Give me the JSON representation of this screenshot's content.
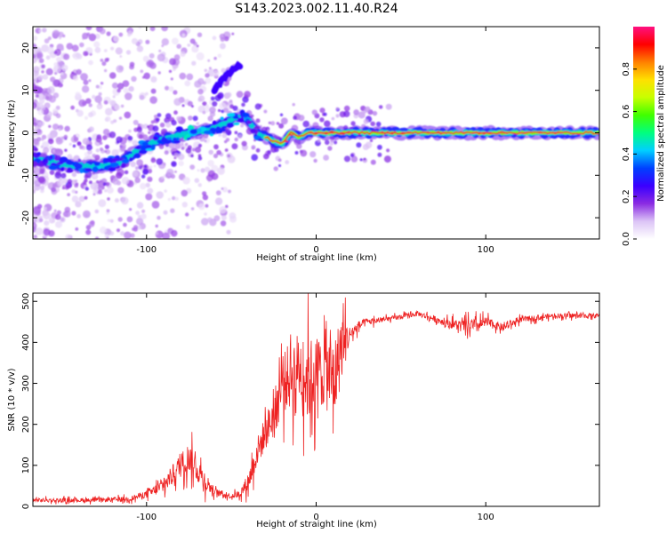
{
  "figure": {
    "title": "S143.2023.002.11.40.R24"
  },
  "chart_data": [
    {
      "type": "heatmap",
      "description_panel": "top",
      "xlabel": "Height of straight line (km)",
      "ylabel": "Frequency (Hz)",
      "xlim": [
        -167,
        167
      ],
      "ylim": [
        -25,
        25
      ],
      "xticks": [
        -100,
        0,
        100
      ],
      "xtick_labels": [
        "-100",
        "0",
        "100"
      ],
      "yticks": [
        -20,
        -10,
        0,
        10,
        20
      ],
      "ytick_labels": [
        "-20",
        "-10",
        "0",
        "10",
        "20"
      ],
      "colorbar": {
        "label": "Normalized spectral amplitude",
        "range": [
          0,
          1
        ],
        "ticks": [
          0.0,
          0.2,
          0.4,
          0.6,
          0.8
        ],
        "tick_labels": [
          "0.0",
          "0.2",
          "0.4",
          "0.6",
          "0.8"
        ],
        "colormap": [
          "#ffffff",
          "#dcc4f6",
          "#8a2be2",
          "#3a00ff",
          "#0040ff",
          "#00cfff",
          "#00ff7f",
          "#40ff00",
          "#c8ff00",
          "#ffe000",
          "#ff8000",
          "#ff0000",
          "#ff1080"
        ]
      },
      "ridge": {
        "x": [
          -167,
          -150,
          -130,
          -115,
          -105,
          -95,
          -85,
          -75,
          -65,
          -55,
          -45,
          -40,
          -35,
          -30,
          -25,
          -20,
          -15,
          -10,
          -5,
          0,
          10,
          20,
          40,
          60,
          80,
          100,
          120,
          140,
          167
        ],
        "y": [
          -6,
          -7.5,
          -8,
          -7,
          -4,
          -2,
          -1,
          0,
          0.5,
          2,
          4,
          3,
          0,
          -1,
          -2,
          -2.5,
          0,
          -1,
          0,
          0,
          0,
          0,
          0,
          0,
          0,
          0,
          0,
          0,
          0
        ],
        "peak_amplitude": [
          0.3,
          0.35,
          0.4,
          0.35,
          0.35,
          0.4,
          0.4,
          0.45,
          0.4,
          0.4,
          0.4,
          0.35,
          0.3,
          0.5,
          0.7,
          0.8,
          0.7,
          0.85,
          0.9,
          0.95,
          0.95,
          0.95,
          0.9,
          0.85,
          0.9,
          0.9,
          0.85,
          0.6,
          0.55
        ]
      },
      "branch": {
        "x": [
          -60,
          -55,
          -50,
          -45
        ],
        "y": [
          10,
          12.5,
          14.5,
          16
        ],
        "peak_amplitude": [
          0.25,
          0.3,
          0.3,
          0.3
        ]
      }
    },
    {
      "type": "line",
      "description_panel": "bottom",
      "xlabel": "Height of straight line (km)",
      "ylabel": "SNR (10 * v/v)",
      "xlim": [
        -167,
        167
      ],
      "ylim": [
        0,
        520
      ],
      "xticks": [
        -100,
        0,
        100
      ],
      "xtick_labels": [
        "-100",
        "0",
        "100"
      ],
      "yticks": [
        0,
        100,
        200,
        300,
        400,
        500
      ],
      "ytick_labels": [
        "0",
        "100",
        "200",
        "300",
        "400",
        "500"
      ],
      "color": "#ee2222",
      "x": [
        -167,
        -150,
        -130,
        -110,
        -100,
        -90,
        -80,
        -75,
        -70,
        -65,
        -60,
        -50,
        -45,
        -40,
        -35,
        -30,
        -25,
        -20,
        -15,
        -10,
        -5,
        0,
        5,
        10,
        15,
        20,
        25,
        30,
        40,
        60,
        75,
        85,
        95,
        100,
        110,
        120,
        140,
        167
      ],
      "y": [
        15,
        15,
        15,
        18,
        30,
        50,
        100,
        120,
        90,
        60,
        35,
        25,
        30,
        60,
        130,
        180,
        220,
        300,
        320,
        340,
        310,
        320,
        340,
        300,
        390,
        420,
        440,
        450,
        455,
        470,
        450,
        440,
        440,
        450,
        435,
        455,
        465,
        465
      ],
      "spread": [
        8,
        8,
        8,
        10,
        15,
        30,
        50,
        60,
        50,
        40,
        15,
        10,
        15,
        40,
        60,
        70,
        90,
        120,
        140,
        150,
        170,
        160,
        160,
        170,
        140,
        30,
        20,
        15,
        10,
        10,
        15,
        25,
        30,
        20,
        15,
        12,
        10,
        10
      ]
    }
  ]
}
